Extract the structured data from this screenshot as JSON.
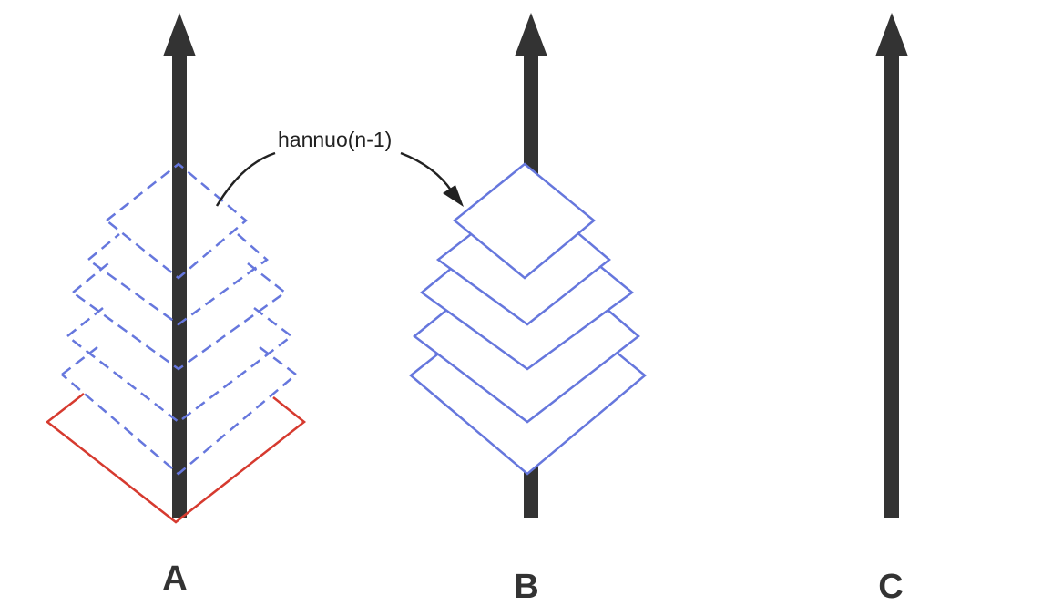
{
  "colors": {
    "rod": "#333333",
    "disk_outline": "#6677dd",
    "largest_disk": "#d63a2f",
    "curve": "#222222",
    "background": "#ffffff"
  },
  "rods": [
    {
      "label": "A"
    },
    {
      "label": "B"
    },
    {
      "label": "C"
    }
  ],
  "move_arrow": {
    "label": "hannuo(n-1)"
  }
}
